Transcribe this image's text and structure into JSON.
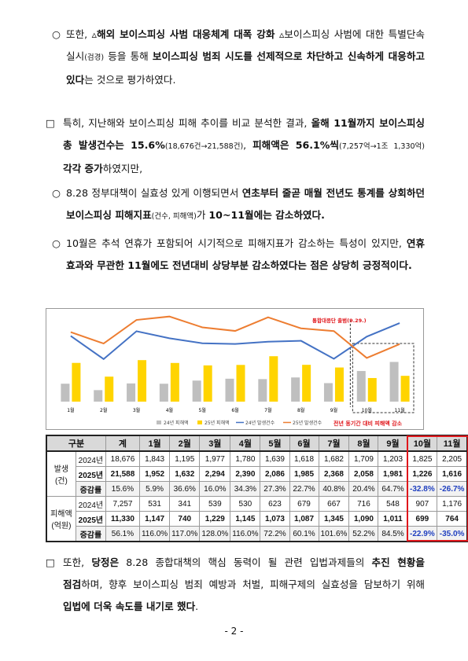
{
  "paragraphs": [
    {
      "marker": "○",
      "runs": [
        {
          "text": "또한, ▵"
        },
        {
          "text": "해외 보이스피싱 사범 대응체계 대폭 강화",
          "bold": true
        },
        {
          "text": " ▵보이스피싱 사범에 대한 특별단속 실시"
        },
        {
          "text": "(검경)",
          "small": true
        },
        {
          "text": " 등을 통해 "
        },
        {
          "text": "보이스피싱 범죄 시도를 선제적으로 차단하고 신속하게 대응하고 있다",
          "bold": true
        },
        {
          "text": "는 것으로 평가하였다."
        }
      ]
    },
    {
      "marker": "□",
      "runs": [
        {
          "text": "특히, 지난해와 보이스피싱 피해 추이를 비교 분석한 결과, "
        },
        {
          "text": "올해 11월까지 보이스피싱 총 발생건수는 15.6%",
          "bold": true
        },
        {
          "text": "(18,676건→21,588건)",
          "small": true
        },
        {
          "text": ", "
        },
        {
          "text": "피해액은 56.1%씩",
          "bold": true
        },
        {
          "text": "(7,257억→1조 1,330억)",
          "small": true
        },
        {
          "text": " "
        },
        {
          "text": "각각 증가",
          "bold": true
        },
        {
          "text": "하였지만,"
        }
      ]
    },
    {
      "marker": "○",
      "runs": [
        {
          "text": "8.28 정부대책이 실효성 있게 이행되면서 "
        },
        {
          "text": "연초부터 줄곧 매월 전년도 통계를 상회하던 보이스피싱 피해지표",
          "bold": true
        },
        {
          "text": "(건수, 피해액)",
          "small": true
        },
        {
          "text": "가 "
        },
        {
          "text": "10~11월에는 감소하였다.",
          "bold": true
        }
      ]
    },
    {
      "marker": "○",
      "runs": [
        {
          "text": "10월은 추석 연휴가 포함되어 시기적으로 피해지표가 감소하는 특성이 있지만, "
        },
        {
          "text": "연휴 효과와 무관한 11월에도 전년대비 상당부분 감소하였다는 점은 상당히 긍정적이다.",
          "bold": true
        }
      ]
    },
    {
      "marker": "□",
      "runs": [
        {
          "text": "또한, "
        },
        {
          "text": "당정은",
          "bold": true
        },
        {
          "text": " 8.28 종합대책의 핵심 동력이 될 관련 입법과제들의 "
        },
        {
          "text": "추진 현황을 점검",
          "bold": true
        },
        {
          "text": "하며, 향후 보이스피싱 범죄 예방과 처벌, 피해구제의 실효성을 담보하기 위해 "
        },
        {
          "text": "입법에 더욱 속도를 내기로 했다",
          "bold": true
        },
        {
          "text": "."
        }
      ]
    }
  ],
  "chart_data": {
    "type": "bar",
    "categories": [
      "1월",
      "2월",
      "3월",
      "4월",
      "5월",
      "6월",
      "7월",
      "8월",
      "9월",
      "10월",
      "11월"
    ],
    "series": [
      {
        "name": "24년 피해액",
        "type": "bar",
        "color": "#bfbfbf",
        "values": [
          531,
          341,
          539,
          530,
          623,
          679,
          667,
          716,
          548,
          907,
          1176
        ]
      },
      {
        "name": "25년 피해액",
        "type": "bar",
        "color": "#ffd400",
        "values": [
          1147,
          740,
          1229,
          1145,
          1073,
          1087,
          1345,
          1090,
          1011,
          699,
          764
        ]
      },
      {
        "name": "24년 발생건수",
        "type": "line",
        "axis": "y2",
        "color": "#4472c4",
        "values": [
          1843,
          1195,
          1977,
          1780,
          1639,
          1618,
          1682,
          1709,
          1203,
          1825,
          2205
        ]
      },
      {
        "name": "25년 발생건수",
        "type": "line",
        "axis": "y2",
        "color": "#ed7d31",
        "values": [
          1952,
          1632,
          2294,
          2390,
          2086,
          1985,
          2368,
          2058,
          1981,
          1226,
          1616
        ]
      }
    ],
    "ylim": [
      0,
      2700
    ],
    "y2lim": [
      0,
      2560
    ],
    "annotations": [
      "통합대응단 출범(9.29.)",
      "전년 동기간 대비 피해액 감소"
    ]
  },
  "table": {
    "header": [
      "구분",
      "계",
      "1월",
      "2월",
      "3월",
      "4월",
      "5월",
      "6월",
      "7월",
      "8월",
      "9월",
      "10월",
      "11월"
    ],
    "groups": [
      {
        "label": "발생\n(건)",
        "rows": [
          {
            "label": "2024년",
            "cells": [
              "18,676",
              "1,843",
              "1,195",
              "1,977",
              "1,780",
              "1,639",
              "1,618",
              "1,682",
              "1,709",
              "1,203",
              "1,825",
              "2,205"
            ]
          },
          {
            "label": "2025년",
            "cells": [
              "21,588",
              "1,952",
              "1,632",
              "2,294",
              "2,390",
              "2,086",
              "1,985",
              "2,368",
              "2,058",
              "1,981",
              "1,226",
              "1,616"
            ]
          },
          {
            "label": "증감률",
            "cells": [
              "15.6%",
              "5.9%",
              "36.6%",
              "16.0%",
              "34.3%",
              "27.3%",
              "22.7%",
              "40.8%",
              "20.4%",
              "64.7%",
              "-32.8%",
              "-26.7%"
            ]
          }
        ]
      },
      {
        "label": "피해액\n(억원)",
        "rows": [
          {
            "label": "2024년",
            "cells": [
              "7,257",
              "531",
              "341",
              "539",
              "530",
              "623",
              "679",
              "667",
              "716",
              "548",
              "907",
              "1,176"
            ]
          },
          {
            "label": "2025년",
            "cells": [
              "11,330",
              "1,147",
              "740",
              "1,229",
              "1,145",
              "1,073",
              "1,087",
              "1,345",
              "1,090",
              "1,011",
              "699",
              "764"
            ]
          },
          {
            "label": "증감률",
            "cells": [
              "56.1%",
              "116.0%",
              "117.0%",
              "128.0%",
              "116.0%",
              "72.2%",
              "60.1%",
              "101.6%",
              "52.2%",
              "84.5%",
              "-22.9%",
              "-35.0%"
            ]
          }
        ]
      }
    ]
  },
  "footer": "- 2 -"
}
